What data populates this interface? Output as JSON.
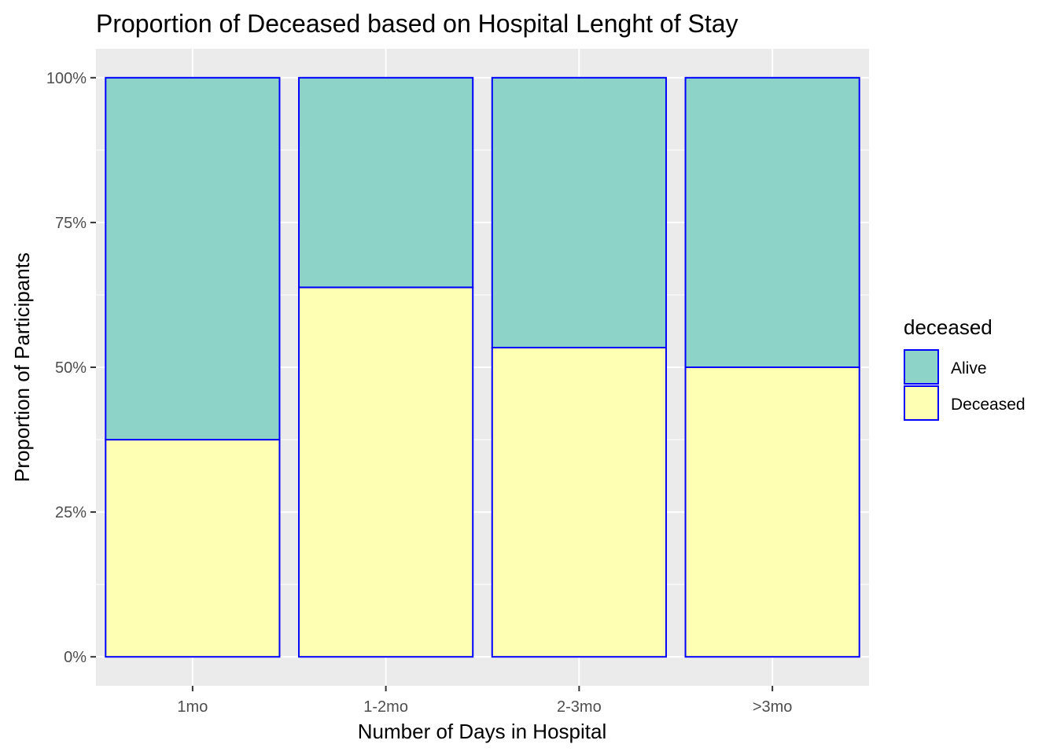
{
  "chart_data": {
    "type": "bar",
    "stacked": true,
    "title": "Proportion of Deceased based on Hospital Lenght of Stay",
    "xlabel": "Number of Days in Hospital",
    "ylabel": "Proportion of Participants",
    "categories": [
      "1mo",
      "1-2mo",
      "2-3mo",
      ">3mo"
    ],
    "series": [
      {
        "name": "Deceased",
        "values": [
          0.375,
          0.638,
          0.534,
          0.5
        ],
        "color": "#FFFFB3"
      },
      {
        "name": "Alive",
        "values": [
          0.625,
          0.362,
          0.466,
          0.5
        ],
        "color": "#8DD3C7"
      }
    ],
    "ylim": [
      -0.05,
      1.05
    ],
    "y_ticks": [
      0,
      0.25,
      0.5,
      0.75,
      1.0
    ],
    "y_tick_labels": [
      "0%",
      "25%",
      "50%",
      "75%",
      "100%"
    ],
    "bar_outline_color": "#0000FF",
    "panel_background": "#EBEBEB",
    "grid": true,
    "legend": {
      "title": "deceased",
      "position": "right",
      "entries": [
        {
          "label": "Alive",
          "color": "#8DD3C7"
        },
        {
          "label": "Deceased",
          "color": "#FFFFB3"
        }
      ]
    }
  }
}
